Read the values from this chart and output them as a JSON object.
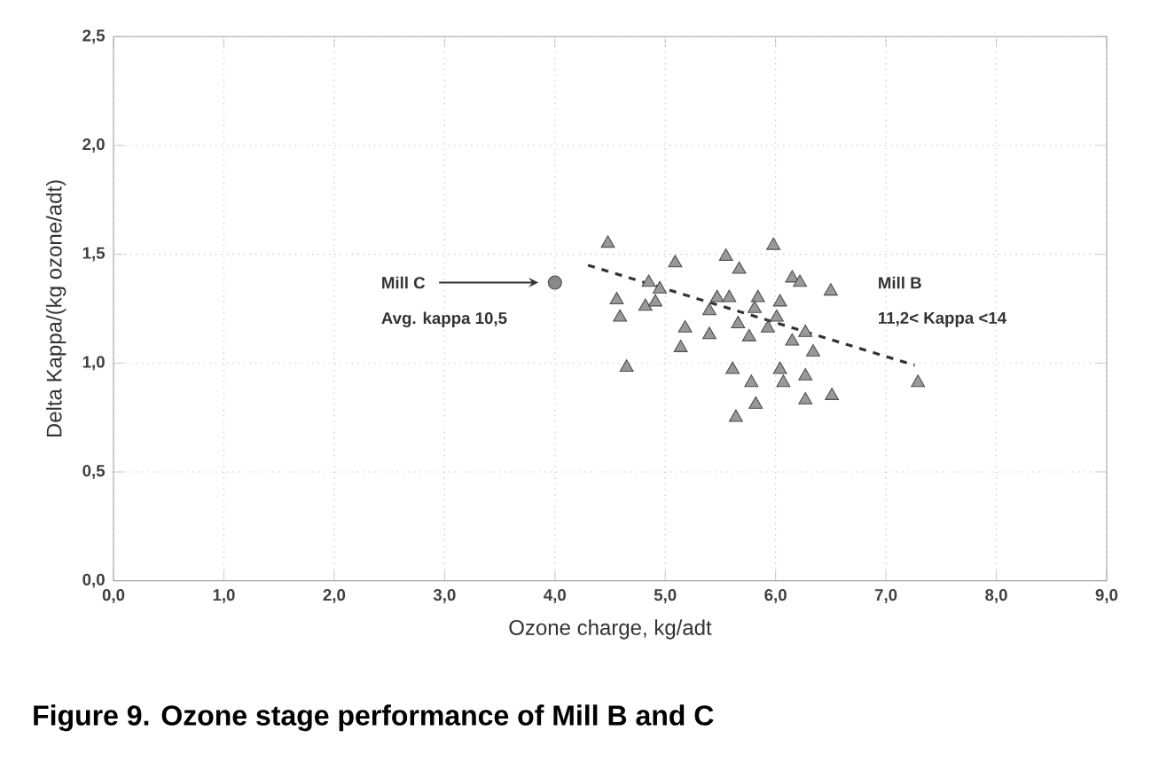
{
  "chart_data": {
    "type": "scatter",
    "title": "Figure 9. Ozone stage performance of Mill B and C",
    "xlabel": "Ozone charge, kg/adt",
    "ylabel": "Delta Kappa/(kg ozone/adt)",
    "xlim": [
      0,
      9
    ],
    "ylim": [
      0,
      2.5
    ],
    "xticks": [
      {
        "value": 0,
        "label": "0,0"
      },
      {
        "value": 1,
        "label": "1,0"
      },
      {
        "value": 2,
        "label": "2,0"
      },
      {
        "value": 3,
        "label": "3,0"
      },
      {
        "value": 4,
        "label": "4,0"
      },
      {
        "value": 5,
        "label": "5,0"
      },
      {
        "value": 6,
        "label": "6,0"
      },
      {
        "value": 7,
        "label": "7,0"
      },
      {
        "value": 8,
        "label": "8,0"
      },
      {
        "value": 9,
        "label": "9,0"
      }
    ],
    "yticks": [
      {
        "value": 0,
        "label": "0,0"
      },
      {
        "value": 0.5,
        "label": "0,5"
      },
      {
        "value": 1,
        "label": "1,0"
      },
      {
        "value": 1.5,
        "label": "1,5"
      },
      {
        "value": 2,
        "label": "2,0"
      },
      {
        "value": 2.5,
        "label": "2,5"
      }
    ],
    "grid": true,
    "series": [
      {
        "marker": "triangle",
        "color": "#999999",
        "x": [
          4.48,
          5.09,
          5.55,
          5.67,
          4.85,
          4.95,
          4.56,
          4.82,
          4.91,
          4.59,
          5.47,
          5.58,
          5.4,
          5.18,
          5.4,
          5.14,
          4.65,
          5.61,
          5.78,
          5.82,
          5.64,
          5.98,
          6.15,
          6.22,
          6.5,
          5.84,
          6.04,
          5.81,
          6.01,
          5.66,
          5.93,
          6.27,
          5.76,
          6.15,
          6.34,
          6.04,
          6.27,
          6.07,
          7.29,
          6.27,
          6.51
        ],
        "values": [
          1.55,
          1.46,
          1.49,
          1.43,
          1.37,
          1.34,
          1.29,
          1.26,
          1.28,
          1.21,
          1.3,
          1.3,
          1.24,
          1.16,
          1.13,
          1.07,
          0.98,
          0.97,
          0.91,
          0.81,
          0.75,
          1.54,
          1.39,
          1.37,
          1.33,
          1.3,
          1.28,
          1.25,
          1.21,
          1.18,
          1.16,
          1.14,
          1.12,
          1.1,
          1.05,
          0.97,
          0.94,
          0.91,
          0.91,
          0.83,
          0.85
        ]
      },
      {
        "marker": "circle",
        "color": "#888888",
        "x": [
          4.0
        ],
        "values": [
          1.37
        ]
      },
      {
        "type": "line",
        "marker": "none",
        "line_style": "dashed",
        "color": "#333333",
        "x": [
          4.3,
          7.26
        ],
        "values": [
          1.45,
          0.99
        ]
      }
    ],
    "annotations": [
      "Mill C",
      "Avg. kappa 10,5",
      "Mill B",
      "11,2< Kappa <14"
    ]
  }
}
